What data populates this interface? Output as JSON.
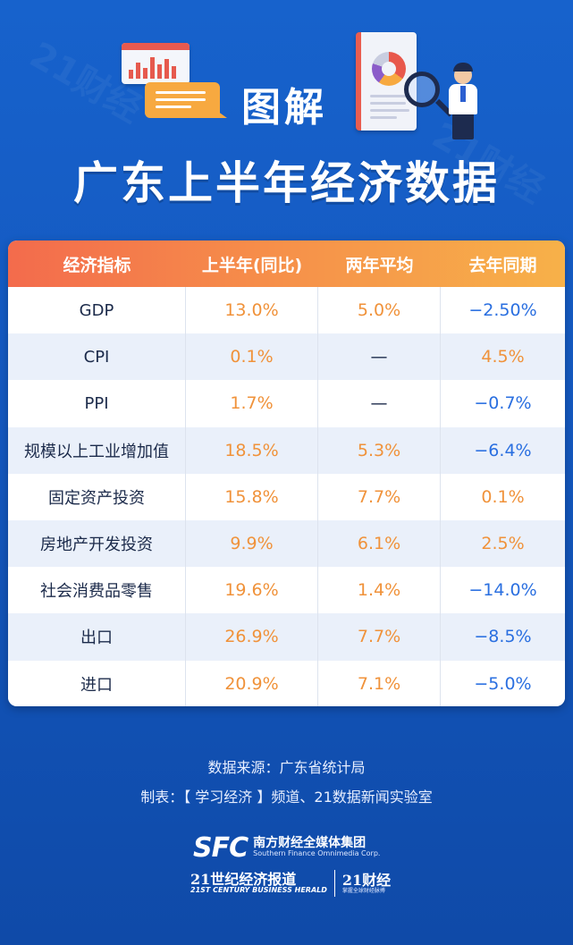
{
  "header": {
    "small_title": "图解",
    "main_title": "广东上半年经济数据"
  },
  "table": {
    "columns": [
      "经济指标",
      "上半年(同比)",
      "两年平均",
      "去年同期"
    ],
    "rows": [
      {
        "name": "GDP",
        "h1": "13.0%",
        "avg2y": "5.0%",
        "last_year": "−2.50%"
      },
      {
        "name": "CPI",
        "h1": "0.1%",
        "avg2y": "—",
        "last_year": "4.5%"
      },
      {
        "name": "PPI",
        "h1": "1.7%",
        "avg2y": "—",
        "last_year": "−0.7%"
      },
      {
        "name": "规模以上工业增加值",
        "h1": "18.5%",
        "avg2y": "5.3%",
        "last_year": "−6.4%"
      },
      {
        "name": "固定资产投资",
        "h1": "15.8%",
        "avg2y": "7.7%",
        "last_year": "0.1%"
      },
      {
        "name": "房地产开发投资",
        "h1": "9.9%",
        "avg2y": "6.1%",
        "last_year": "2.5%"
      },
      {
        "name": "社会消费品零售",
        "h1": "19.6%",
        "avg2y": "1.4%",
        "last_year": "−14.0%"
      },
      {
        "name": "出口",
        "h1": "26.9%",
        "avg2y": "7.7%",
        "last_year": "−8.5%"
      },
      {
        "name": "进口",
        "h1": "20.9%",
        "avg2y": "7.1%",
        "last_year": "−5.0%"
      }
    ],
    "last_year_colors": [
      "blue",
      "orange",
      "blue",
      "blue",
      "orange",
      "orange",
      "blue",
      "blue",
      "blue"
    ]
  },
  "footer": {
    "source": "数据来源：广东省统计局",
    "maker": "制表：【 学习经济 】频道、21数据新闻实验室"
  },
  "logos": {
    "sfc_mark": "SFC",
    "sfc_cn": "南方财经全媒体集团",
    "sfc_en": "Southern Finance Omnimedia Corp.",
    "herald_cn": "21世纪经济报道",
    "herald_en": "21ST CENTURY BUSINESS HERALD",
    "caijing_cn": "21财经",
    "caijing_sub": "掌握全球财经脉搏"
  },
  "colors": {
    "background": "#1458bf",
    "header_gradient_start": "#f36b4c",
    "header_gradient_end": "#f7b149",
    "value_orange": "#f0923a",
    "value_blue": "#2a6fe0"
  }
}
